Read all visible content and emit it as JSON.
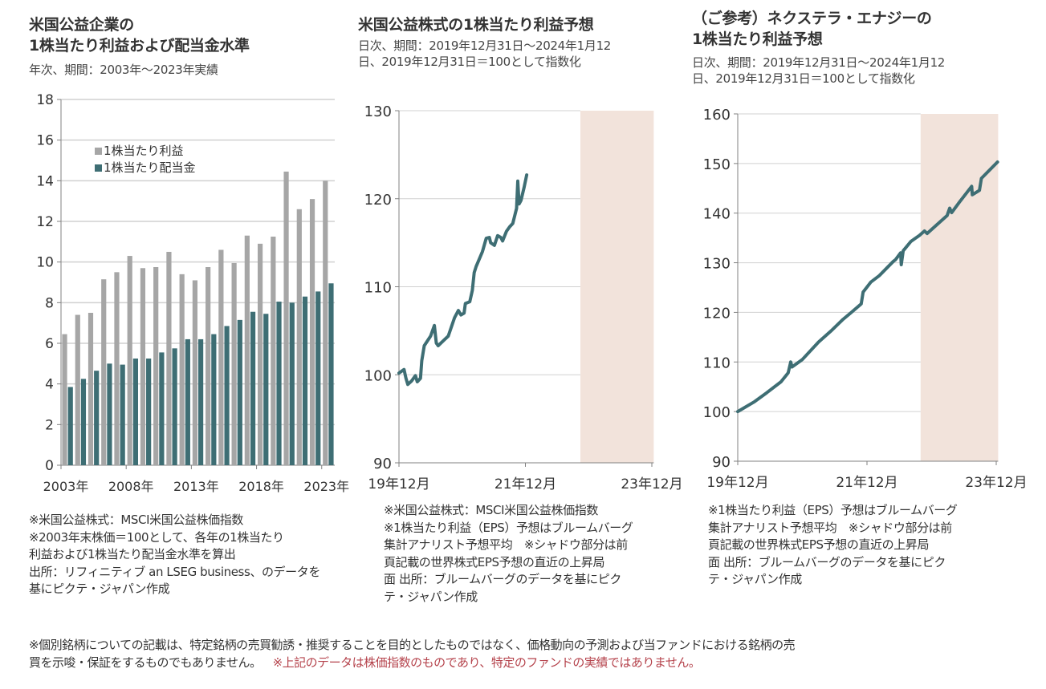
{
  "colors": {
    "eps_bar": "#a6a6a6",
    "dividend_bar": "#3e6e74",
    "line": "#3e6e74",
    "shade": "#f2e3db",
    "grid": "#d0d0d0",
    "axis": "#808080",
    "red_note": "#b5434c"
  },
  "panels": [
    {
      "title_lines": [
        "米国公益企業の",
        "1株当たり利益および配当金水準"
      ],
      "subtitle_lines": [
        "年次、期間：2003年～2023年実績"
      ],
      "notes": [
        "※米国公益株式：MSCI米国公益株価指数",
        "※2003年末株価＝100として、各年の1株当たり",
        "利益および1株当たり配当金水準を算出",
        "出所：リフィニティブ an LSEG business、のデータを",
        "基にピクテ・ジャパン作成"
      ]
    },
    {
      "title_lines": [
        "米国公益株式の1株当たり利益予想"
      ],
      "subtitle_lines": [
        "日次、期間：2019年12月31日～2024年1月12",
        "日、2019年12月31日＝100として指数化"
      ],
      "notes": [
        "※米国公益株式：MSCI米国公益株価指数",
        "※1株当たり利益（EPS）予想はブルームバーグ",
        "集計アナリスト予想平均　※シャドウ部分は前",
        "頁記載の世界株式EPS予想の直近の上昇局",
        "面 出所：ブルームバーグのデータを基にピク",
        "テ・ジャパン作成"
      ]
    },
    {
      "title_lines": [
        "（ご参考）ネクステラ・エナジーの",
        "1株当たり利益予想"
      ],
      "subtitle_lines": [
        "日次、期間：2019年12月31日～2024年1月12",
        "日、2019年12月31日＝100として指数化"
      ],
      "notes": [
        "※1株当たり利益（EPS）予想はブルームバーグ",
        "集計アナリスト予想平均　※シャドウ部分は前",
        "頁記載の世界株式EPS予想の直近の上昇局",
        "面 出所：ブルームバーグのデータを基にピク",
        "テ・ジャパン作成"
      ]
    }
  ],
  "disclaimer": {
    "line1": "※個別銘柄についての記載は、特定銘柄の売買勧誘・推奨することを目的としたものではなく、価格動向の予測および当ファンドにおける銘柄の売",
    "line2_black": "買を示唆・保証をするものでもありません。",
    "line2_red": "※上記のデータは株価指数のものであり、特定のファンドの実績ではありません。"
  },
  "chart_data": [
    {
      "type": "bar",
      "title": "米国公益企業の1株当たり利益および配当金水準",
      "subtitle": "年次、期間：2003年～2023年実績",
      "categories": [
        "2003",
        "2004",
        "2005",
        "2006",
        "2007",
        "2008",
        "2009",
        "2010",
        "2011",
        "2012",
        "2013",
        "2014",
        "2015",
        "2016",
        "2017",
        "2018",
        "2019",
        "2020",
        "2021",
        "2022",
        "2023"
      ],
      "series": [
        {
          "name": "1株当たり利益",
          "color": "#a6a6a6",
          "values": [
            6.45,
            7.4,
            7.5,
            9.15,
            9.5,
            10.3,
            9.7,
            9.75,
            10.5,
            9.4,
            9.1,
            9.75,
            10.6,
            9.95,
            11.3,
            10.9,
            11.25,
            14.45,
            12.6,
            13.1,
            14.0
          ]
        },
        {
          "name": "1株当たり配当金",
          "color": "#3e6e74",
          "values": [
            3.85,
            4.25,
            4.65,
            5.0,
            4.95,
            5.25,
            5.25,
            5.55,
            5.75,
            6.2,
            6.2,
            6.45,
            6.85,
            7.15,
            7.55,
            7.45,
            8.05,
            8.0,
            8.3,
            8.55,
            8.95
          ]
        }
      ],
      "xtick_labels": [
        "2003年",
        "2008年",
        "2013年",
        "2018年",
        "2023年"
      ],
      "xtick_categories": [
        "2003",
        "2008",
        "2013",
        "2018",
        "2023"
      ],
      "ylim": [
        0,
        18
      ],
      "yticks": [
        0,
        2,
        4,
        6,
        8,
        10,
        12,
        14,
        16,
        18
      ],
      "grid": true,
      "legend": {
        "placement": "top-left",
        "entries": [
          "1株当たり利益",
          "1株当たり配当金"
        ]
      },
      "xlabel": "",
      "ylabel": ""
    },
    {
      "type": "line",
      "title": "米国公益株式の1株当たり利益予想",
      "subtitle": "日次、期間：2019年12月31日～2024年1月12日、2019年12月31日＝100として指数化",
      "x_unit": "years since 2019-12-31",
      "xlim": [
        0,
        4.03
      ],
      "ylim": [
        90,
        130
      ],
      "yticks": [
        90,
        100,
        110,
        120,
        130
      ],
      "xticks": [
        {
          "x": 0,
          "label": "19年12月"
        },
        {
          "x": 2,
          "label": "21年12月"
        },
        {
          "x": 4,
          "label": "23年12月"
        }
      ],
      "shade": {
        "x_start": 2.87,
        "x_end": 4.03
      },
      "grid": true,
      "series": [
        {
          "name": "MSCI米国公益株価指数 EPS予想",
          "points": [
            [
              0,
              100.2
            ],
            [
              0.08,
              100.6
            ],
            [
              0.11,
              99.6
            ],
            [
              0.14,
              98.9
            ],
            [
              0.2,
              99.3
            ],
            [
              0.26,
              99.9
            ],
            [
              0.29,
              99.2
            ],
            [
              0.34,
              99.6
            ],
            [
              0.36,
              101.6
            ],
            [
              0.4,
              103.3
            ],
            [
              0.5,
              104.4
            ],
            [
              0.56,
              105.6
            ],
            [
              0.59,
              103.6
            ],
            [
              0.62,
              103.3
            ],
            [
              0.72,
              104.0
            ],
            [
              0.78,
              104.4
            ],
            [
              0.88,
              106.5
            ],
            [
              0.94,
              107.3
            ],
            [
              0.98,
              106.8
            ],
            [
              1.03,
              107.0
            ],
            [
              1.05,
              108.1
            ],
            [
              1.12,
              108.3
            ],
            [
              1.16,
              109.6
            ],
            [
              1.19,
              111.6
            ],
            [
              1.22,
              112.3
            ],
            [
              1.32,
              114.0
            ],
            [
              1.38,
              115.5
            ],
            [
              1.43,
              115.6
            ],
            [
              1.45,
              115.0
            ],
            [
              1.51,
              114.7
            ],
            [
              1.56,
              115.8
            ],
            [
              1.61,
              115.6
            ],
            [
              1.64,
              115.2
            ],
            [
              1.7,
              116.3
            ],
            [
              1.75,
              116.8
            ],
            [
              1.8,
              117.2
            ],
            [
              1.86,
              118.9
            ],
            [
              1.88,
              122.0
            ],
            [
              1.9,
              119.4
            ],
            [
              1.93,
              119.8
            ],
            [
              1.98,
              121.3
            ],
            [
              2.02,
              122.7
            ]
          ],
          "color": "#3e6e74"
        }
      ],
      "xlabel": "",
      "ylabel": ""
    },
    {
      "type": "line",
      "title": "（ご参考）ネクステラ・エナジーの1株当たり利益予想",
      "subtitle": "日次、期間：2019年12月31日～2024年1月12日、2019年12月31日＝100として指数化",
      "x_unit": "years since 2019-12-31",
      "xlim": [
        0,
        4.03
      ],
      "ylim": [
        90,
        160
      ],
      "yticks": [
        90,
        100,
        110,
        120,
        130,
        140,
        150,
        160
      ],
      "xticks": [
        {
          "x": 0,
          "label": "19年12月"
        },
        {
          "x": 2,
          "label": "21年12月"
        },
        {
          "x": 4,
          "label": "23年12月"
        }
      ],
      "shade": {
        "x_start": 2.83,
        "x_end": 4.03
      },
      "grid": true,
      "series": [
        {
          "name": "ネクステラ・エナジー EPS予想",
          "points": [
            [
              0,
              100.0
            ],
            [
              0.26,
              102.0
            ],
            [
              0.45,
              103.8
            ],
            [
              0.67,
              106.0
            ],
            [
              0.78,
              107.8
            ],
            [
              0.82,
              110.0
            ],
            [
              0.84,
              109.0
            ],
            [
              1.0,
              110.5
            ],
            [
              1.25,
              114.0
            ],
            [
              1.44,
              116.2
            ],
            [
              1.63,
              118.6
            ],
            [
              1.75,
              119.9
            ],
            [
              1.91,
              121.7
            ],
            [
              1.94,
              124.1
            ],
            [
              2.06,
              126.1
            ],
            [
              2.19,
              127.4
            ],
            [
              2.41,
              130.3
            ],
            [
              2.44,
              130.6
            ],
            [
              2.52,
              132.0
            ],
            [
              2.53,
              129.6
            ],
            [
              2.56,
              132.4
            ],
            [
              2.68,
              134.3
            ],
            [
              2.81,
              135.5
            ],
            [
              2.89,
              136.4
            ],
            [
              2.93,
              135.9
            ],
            [
              3.06,
              137.4
            ],
            [
              3.24,
              139.5
            ],
            [
              3.28,
              141.0
            ],
            [
              3.31,
              140.1
            ],
            [
              3.43,
              142.2
            ],
            [
              3.62,
              145.4
            ],
            [
              3.63,
              143.7
            ],
            [
              3.74,
              144.6
            ],
            [
              3.77,
              147.0
            ],
            [
              4.02,
              150.3
            ]
          ],
          "color": "#3e6e74"
        }
      ],
      "xlabel": "",
      "ylabel": ""
    }
  ]
}
